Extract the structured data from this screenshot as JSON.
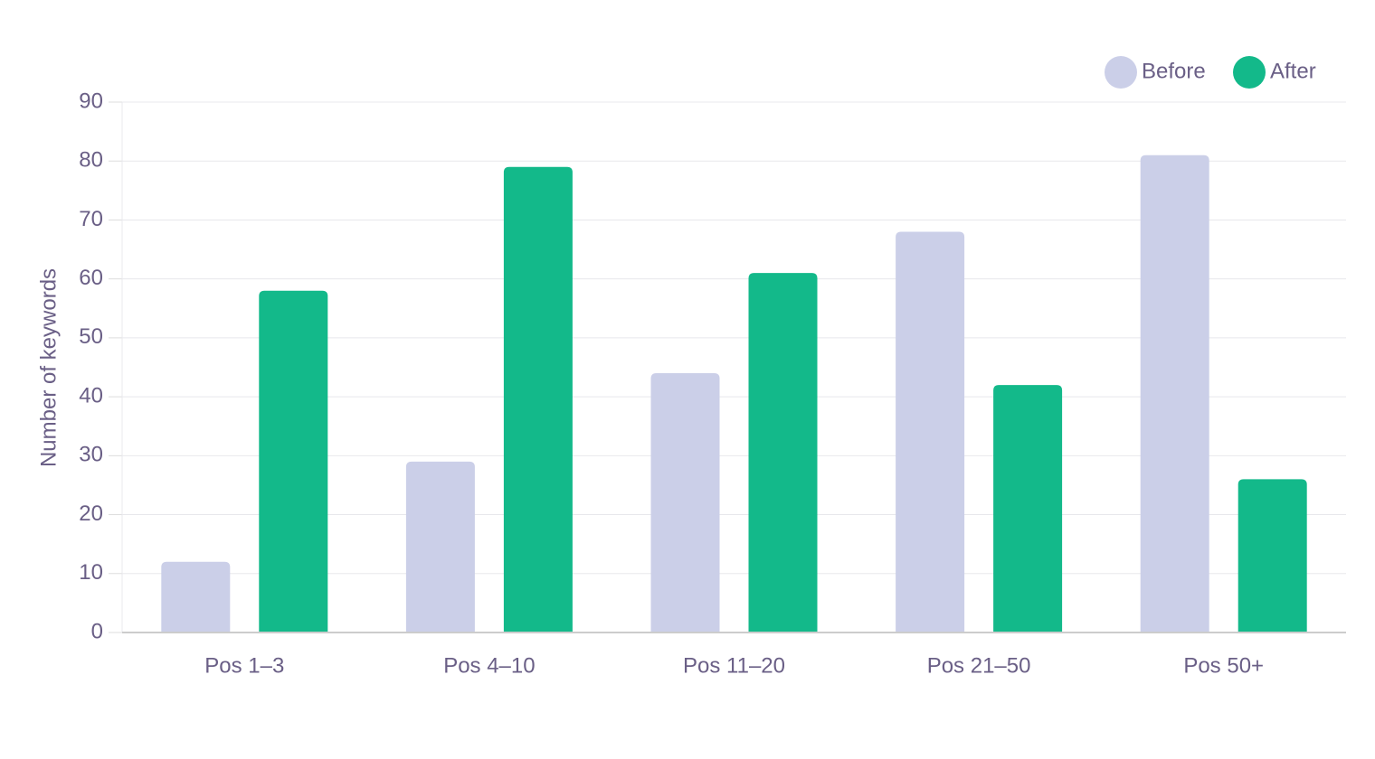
{
  "chart_data": {
    "type": "bar",
    "y_label": "Number of keywords",
    "categories": [
      "Pos 1–3",
      "Pos 4–10",
      "Pos 11–20",
      "Pos 21–50",
      "Pos 50+"
    ],
    "series": [
      {
        "name": "Before",
        "color": "#cbcfe8",
        "values": [
          12,
          29,
          44,
          68,
          81
        ]
      },
      {
        "name": "After",
        "color": "#13b98a",
        "values": [
          58,
          79,
          61,
          42,
          26
        ]
      }
    ],
    "ylim": [
      0,
      90
    ],
    "yticks": [
      0,
      10,
      20,
      30,
      40,
      50,
      60,
      70,
      80,
      90
    ],
    "grid": true,
    "legend": "top-right"
  }
}
